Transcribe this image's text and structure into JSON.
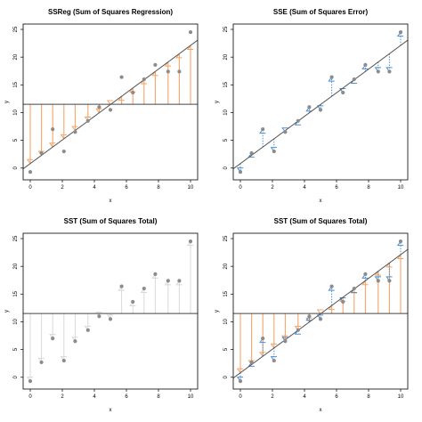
{
  "chart_data": [
    {
      "type": "scatter",
      "title": "SSReg (Sum of Squares Regression)",
      "xlabel": "x",
      "ylabel": "y",
      "xlim": [
        0,
        10
      ],
      "ylim": [
        -1,
        25
      ],
      "xticks": [
        0,
        2,
        4,
        6,
        8,
        10
      ],
      "yticks": [
        0,
        5,
        10,
        15,
        20,
        25
      ],
      "points": {
        "x": [
          0,
          0.7,
          1.4,
          2.1,
          2.8,
          3.6,
          4.3,
          5.0,
          5.7,
          6.4,
          7.1,
          7.8,
          8.6,
          9.3,
          10.0
        ],
        "y": [
          -0.7,
          2.7,
          7.0,
          3.0,
          6.5,
          8.5,
          11.0,
          10.5,
          16.4,
          13.6,
          16.0,
          18.6,
          17.4,
          17.4,
          24.5
        ]
      },
      "fit_line": {
        "intercept": 0.8,
        "slope": 2.13
      },
      "mean_line": 11.5,
      "segments": "fitted-to-mean",
      "colors": {
        "points": "#8c8c8c",
        "segments": "#f5a468",
        "fit_line": "#555555",
        "mean_line": "#444444"
      }
    },
    {
      "type": "scatter",
      "title": "SSE (Sum of Squares Error)",
      "xlabel": "x",
      "ylabel": "y",
      "xlim": [
        0,
        10
      ],
      "ylim": [
        -1,
        25
      ],
      "xticks": [
        0,
        2,
        4,
        6,
        8,
        10
      ],
      "yticks": [
        0,
        5,
        10,
        15,
        20,
        25
      ],
      "points": {
        "x": [
          0,
          0.7,
          1.4,
          2.1,
          2.8,
          3.6,
          4.3,
          5.0,
          5.7,
          6.4,
          7.1,
          7.8,
          8.6,
          9.3,
          10.0
        ],
        "y": [
          -0.7,
          2.7,
          7.0,
          3.0,
          6.5,
          8.5,
          11.0,
          10.5,
          16.4,
          13.6,
          16.0,
          18.6,
          17.4,
          17.4,
          24.5
        ]
      },
      "fit_line": {
        "intercept": 0.8,
        "slope": 2.13
      },
      "segments": "point-to-fitted",
      "colors": {
        "points": "#8c8c8c",
        "segments": "#4a8fd8",
        "fit_line": "#555555"
      }
    },
    {
      "type": "scatter",
      "title": "SST (Sum of Squares Total)",
      "xlabel": "x",
      "ylabel": "y",
      "xlim": [
        0,
        10
      ],
      "ylim": [
        -1,
        25
      ],
      "xticks": [
        0,
        2,
        4,
        6,
        8,
        10
      ],
      "yticks": [
        0,
        5,
        10,
        15,
        20,
        25
      ],
      "points": {
        "x": [
          0,
          0.7,
          1.4,
          2.1,
          2.8,
          3.6,
          4.3,
          5.0,
          5.7,
          6.4,
          7.1,
          7.8,
          8.6,
          9.3,
          10.0
        ],
        "y": [
          -0.7,
          2.7,
          7.0,
          3.0,
          6.5,
          8.5,
          11.0,
          10.5,
          16.4,
          13.6,
          16.0,
          18.6,
          17.4,
          17.4,
          24.5
        ]
      },
      "mean_line": 11.5,
      "segments": "point-to-mean",
      "colors": {
        "points": "#8c8c8c",
        "segments": "#d8d8d8",
        "mean_line": "#444444"
      }
    },
    {
      "type": "scatter",
      "title": "SST (Sum of Squares Total)",
      "xlabel": "x",
      "ylabel": "y",
      "xlim": [
        0,
        10
      ],
      "ylim": [
        -1,
        25
      ],
      "xticks": [
        0,
        2,
        4,
        6,
        8,
        10
      ],
      "yticks": [
        0,
        5,
        10,
        15,
        20,
        25
      ],
      "points": {
        "x": [
          0,
          0.7,
          1.4,
          2.1,
          2.8,
          3.6,
          4.3,
          5.0,
          5.7,
          6.4,
          7.1,
          7.8,
          8.6,
          9.3,
          10.0
        ],
        "y": [
          -0.7,
          2.7,
          7.0,
          3.0,
          6.5,
          8.5,
          11.0,
          10.5,
          16.4,
          13.6,
          16.0,
          18.6,
          17.4,
          17.4,
          24.5
        ]
      },
      "fit_line": {
        "intercept": 0.8,
        "slope": 2.13
      },
      "mean_line": 11.5,
      "segments": "combined",
      "colors": {
        "points": "#8c8c8c",
        "segments_reg": "#f5a468",
        "segments_err": "#4a8fd8",
        "fit_line": "#555555",
        "mean_line": "#444444"
      }
    }
  ]
}
